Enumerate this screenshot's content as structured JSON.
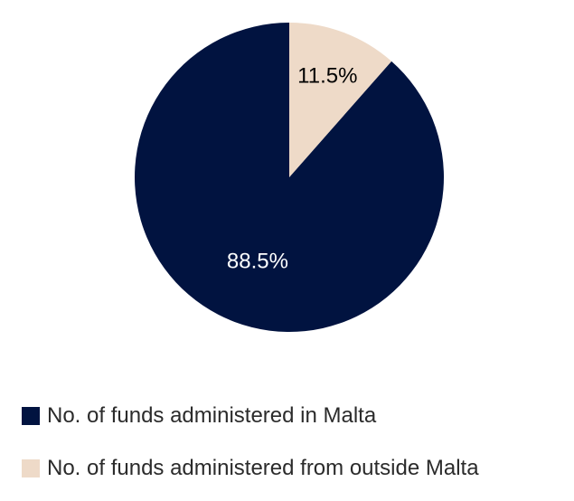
{
  "chart_data": {
    "type": "pie",
    "categories": [
      "No. of funds administered in Malta",
      "No. of funds administered from outside Malta"
    ],
    "values": [
      88.5,
      11.5
    ],
    "data_labels": [
      "88.5%",
      "11.5%"
    ],
    "colors": [
      "#011340",
      "#eedac8"
    ],
    "label_colors": [
      "#ffffff",
      "#000000"
    ],
    "start_angle_deg": 0,
    "direction": "counterclockwise",
    "legend_position": "bottom-left"
  }
}
